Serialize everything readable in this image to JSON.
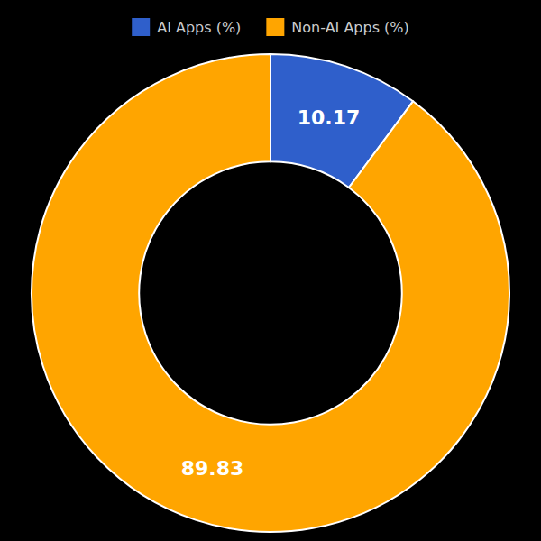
{
  "chart_data": {
    "type": "donut",
    "categories": [
      "AI Apps (%)",
      "Non-AI Apps (%)"
    ],
    "values": [
      10.17,
      89.83
    ],
    "colors": [
      "#2f5fcb",
      "#FFA500"
    ],
    "data_labels": true,
    "legend": "top"
  }
}
